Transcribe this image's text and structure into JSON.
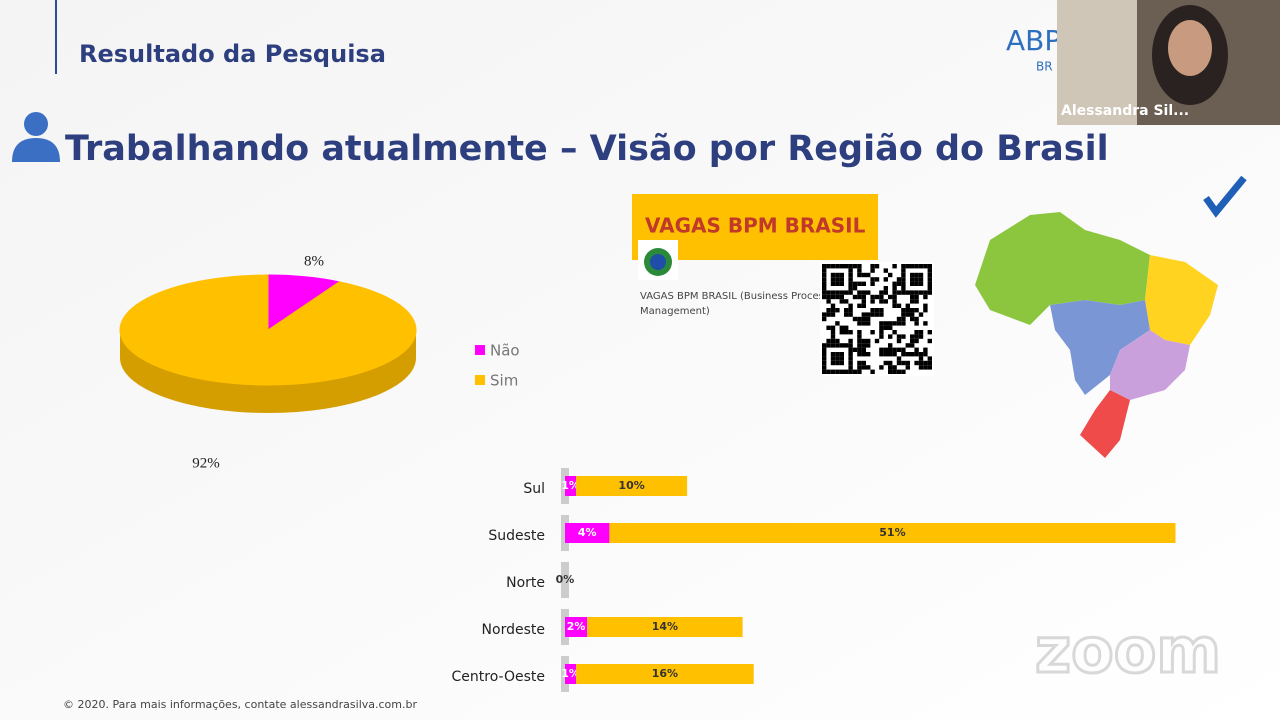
{
  "slide": {
    "section": "Resultado da Pesquisa",
    "title": "Trabalhando atualmente – Visão por Região do Brasil",
    "logo": "ABP",
    "logo_sub": "BR",
    "footer": "© 2020. Para mais informações, contate alessandrasilva.com.br"
  },
  "ad": {
    "banner": "VAGAS BPM BRASIL",
    "caption_1": "VAGAS BPM BRASIL (Business Process",
    "caption_2": "Management)"
  },
  "video": {
    "name": "Alessandra Sil..."
  },
  "zoom": {
    "watermark": "zoom"
  },
  "chart_data": [
    {
      "type": "pie",
      "categories": [
        "Não",
        "Sim"
      ],
      "values": [
        8,
        92
      ],
      "value_labels": [
        "8%",
        "92%"
      ],
      "colors": [
        "#ff00ff",
        "#ffc000"
      ],
      "legend": "right"
    },
    {
      "type": "bar",
      "orientation": "horizontal",
      "stacked": true,
      "categories": [
        "Sul",
        "Sudeste",
        "Norte",
        "Nordeste",
        "Centro-Oeste"
      ],
      "series": [
        {
          "name": "Não",
          "color": "#ff00ff",
          "values": [
            1,
            4,
            0,
            2,
            1
          ],
          "value_labels": [
            "1%",
            "4%",
            "0%",
            "2%",
            "1%"
          ]
        },
        {
          "name": "Sim",
          "color": "#ffc000",
          "values": [
            10,
            51,
            0,
            14,
            16
          ],
          "value_labels": [
            "10%",
            "51%",
            "0%",
            "14%",
            "16%"
          ]
        }
      ]
    }
  ]
}
